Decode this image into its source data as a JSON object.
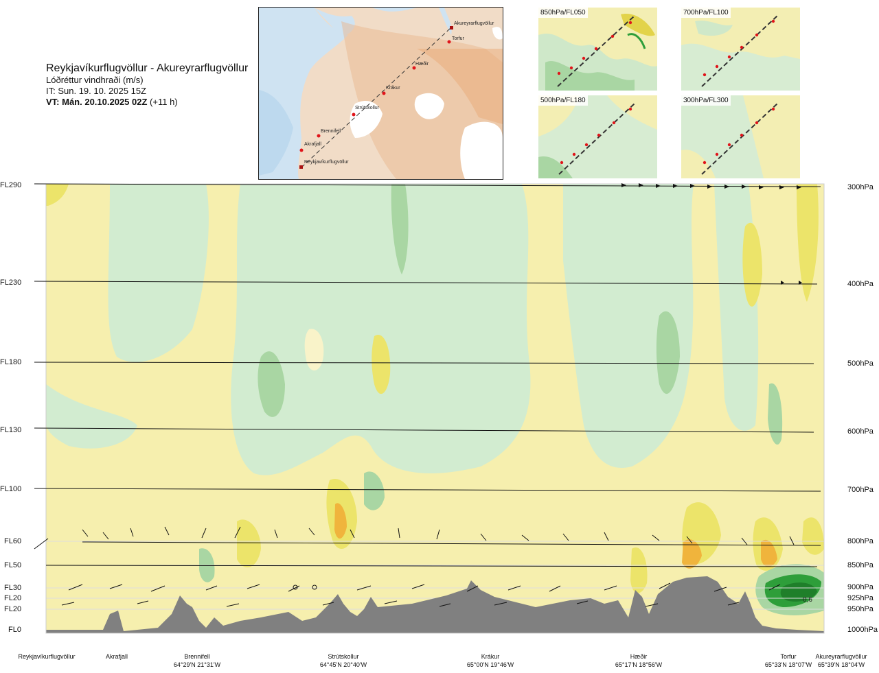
{
  "title": {
    "route": "Reykjavíkurflugvöllur - Akureyrarflugvöllur",
    "subtitle": "Lóðréttur vindhraði (m/s)",
    "it": "IT: Sun. 19. 10. 2025 15Z",
    "vt_bold": "VT: Mán. 20.10.2025 02Z",
    "vt_offset": "(+11 h)"
  },
  "map": {
    "waypoints": [
      "Akureyrarflugvöllur",
      "Torfur",
      "Hæðir",
      "Krákur",
      "Strútskollur",
      "Brennifell",
      "Akrafjall",
      "Reykjavíkurflugvöllur"
    ]
  },
  "thumbnails": [
    {
      "label": "850hPa/FL050"
    },
    {
      "label": "700hPa/FL100"
    },
    {
      "label": "500hPa/FL180"
    },
    {
      "label": "300hPa/FL300"
    }
  ],
  "levels": [
    {
      "fl": "FL290",
      "hpa": "300hPa"
    },
    {
      "fl": "FL230",
      "hpa": "400hPa"
    },
    {
      "fl": "FL180",
      "hpa": "500hPa"
    },
    {
      "fl": "FL130",
      "hpa": "600hPa"
    },
    {
      "fl": "FL100",
      "hpa": "700hPa"
    },
    {
      "fl": "FL60",
      "hpa": "800hPa"
    },
    {
      "fl": "FL50",
      "hpa": "850hPa"
    },
    {
      "fl": "FL30",
      "hpa": "900hPa"
    },
    {
      "fl": "FL20",
      "hpa": "925hPa"
    },
    {
      "fl": "FL20",
      "hpa": "950hPa"
    },
    {
      "fl": "FL0",
      "hpa": "1000hPa"
    }
  ],
  "stations": [
    {
      "name": "Reykjavíkurflugvöllur",
      "coord": ""
    },
    {
      "name": "Akrafjall",
      "coord": ""
    },
    {
      "name": "Brennifell",
      "coord": "64°29'N 21°31'W"
    },
    {
      "name": "Strútskollur",
      "coord": "64°45'N 20°40'W"
    },
    {
      "name": "Krákur",
      "coord": "65°00'N 19°46'W"
    },
    {
      "name": "Hæðir",
      "coord": "65°17'N 18°56'W"
    },
    {
      "name": "Torfur",
      "coord": "65°33'N 18°07'W"
    },
    {
      "name": "Akureyrarflugvöllur",
      "coord": "65°39'N 18°04'W"
    }
  ],
  "annotation": "0,6",
  "colors": {
    "land": "#f0d9c4",
    "sea": "#cfe3f2",
    "terrain": "#808080",
    "green_light": "#d2ecd0",
    "green_mid": "#a9d6a3",
    "green_dark": "#2e9e3a",
    "yellow_light": "#f6efae",
    "yellow_mid": "#ece46a",
    "orange": "#f0b43c"
  }
}
